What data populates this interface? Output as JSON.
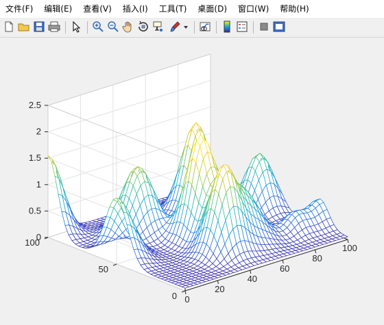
{
  "menu": {
    "items": [
      "文件(F)",
      "编辑(E)",
      "查看(V)",
      "插入(I)",
      "工具(T)",
      "桌面(D)",
      "窗口(W)",
      "帮助(H)"
    ]
  },
  "toolbar": {
    "buttons": [
      {
        "icon": "new-figure-icon"
      },
      {
        "icon": "open-file-icon"
      },
      {
        "icon": "save-icon"
      },
      {
        "icon": "print-icon"
      },
      {
        "icon": "edit-plot-arrow-icon"
      },
      {
        "icon": "zoom-in-icon"
      },
      {
        "icon": "zoom-out-icon"
      },
      {
        "icon": "pan-hand-icon"
      },
      {
        "icon": "rotate-3d-icon"
      },
      {
        "icon": "data-cursor-icon"
      },
      {
        "icon": "brush-icon"
      },
      {
        "icon": "link-plot-icon"
      },
      {
        "icon": "colorbar-icon"
      },
      {
        "icon": "legend-icon"
      },
      {
        "icon": "hide-plot-tools-icon"
      },
      {
        "icon": "show-plot-tools-icon"
      }
    ]
  },
  "chart_data": {
    "type": "surface-mesh",
    "title": "",
    "xlabel": "",
    "ylabel": "",
    "zlabel": "",
    "xlim": [
      0,
      100
    ],
    "ylim": [
      0,
      100
    ],
    "zlim": [
      0,
      2.5
    ],
    "xticks": [
      "0",
      "20",
      "40",
      "60",
      "80",
      "100"
    ],
    "yticks": [
      "0",
      "50",
      "100"
    ],
    "zticks": [
      "0",
      "0.5",
      "1",
      "1.5",
      "2",
      "2.5"
    ],
    "grid": true,
    "colormap": [
      "#3e26a8",
      "#2f6ce3",
      "#1ba6d7",
      "#3ec49d",
      "#acc93a",
      "#fcd033",
      "#f9fb15"
    ],
    "peaks": [
      {
        "x": 0,
        "y": 100,
        "h": 1.5,
        "s": 7
      },
      {
        "x": 0,
        "y": 50,
        "h": 1.2,
        "s": 8
      },
      {
        "x": 30,
        "y": 70,
        "h": 1.3,
        "s": 8
      },
      {
        "x": 47,
        "y": 45,
        "h": 1.9,
        "s": 7
      },
      {
        "x": 70,
        "y": 75,
        "h": 1.7,
        "s": 7
      },
      {
        "x": 42,
        "y": 22,
        "h": 1.5,
        "s": 7
      },
      {
        "x": 58,
        "y": 28,
        "h": 1.0,
        "s": 9
      },
      {
        "x": 92,
        "y": 55,
        "h": 1.1,
        "s": 7
      },
      {
        "x": 85,
        "y": 20,
        "h": 0.4,
        "s": 6
      },
      {
        "x": 100,
        "y": 20,
        "h": 0.5,
        "s": 6
      }
    ]
  }
}
